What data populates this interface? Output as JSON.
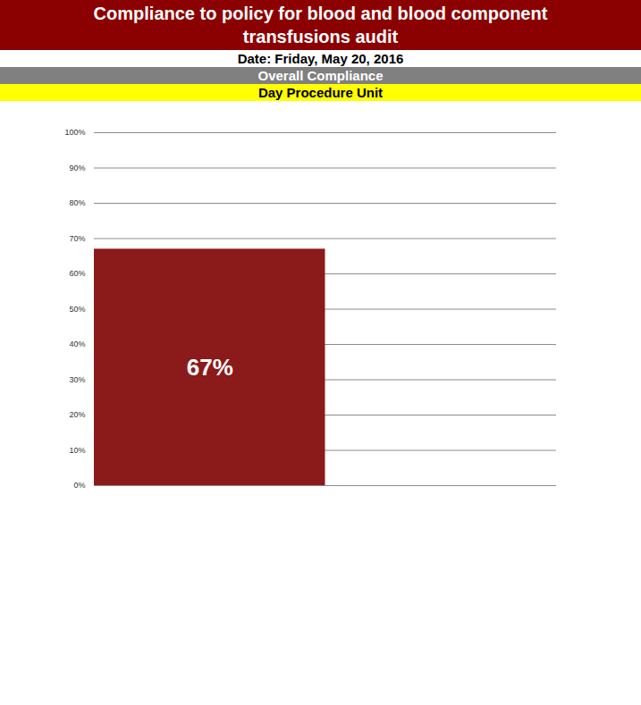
{
  "chart_data": {
    "type": "bar",
    "title": "Compliance to policy for blood and blood component transfusions audit",
    "subtitle": "Date: Friday, May 20, 2016",
    "heading": "Overall Compliance",
    "unit": "Day Procedure Unit",
    "categories": [
      null
    ],
    "values": [
      67
    ],
    "value_labels": [
      "67%"
    ],
    "color": "#8b1a1a",
    "ylim": [
      0,
      100
    ],
    "yticks": [
      {
        "value": 0,
        "label": "0%"
      },
      {
        "value": 10,
        "label": "10%"
      },
      {
        "value": 20,
        "label": "20%"
      },
      {
        "value": 30,
        "label": "30%"
      },
      {
        "value": 40,
        "label": "40%"
      },
      {
        "value": 50,
        "label": "50%"
      },
      {
        "value": 60,
        "label": "60%"
      },
      {
        "value": 70,
        "label": "70%"
      },
      {
        "value": 80,
        "label": "80%"
      },
      {
        "value": 90,
        "label": "90%"
      },
      {
        "value": 100,
        "label": "100%"
      }
    ],
    "grid": true,
    "data_labels": true,
    "tick_labels": "y"
  }
}
